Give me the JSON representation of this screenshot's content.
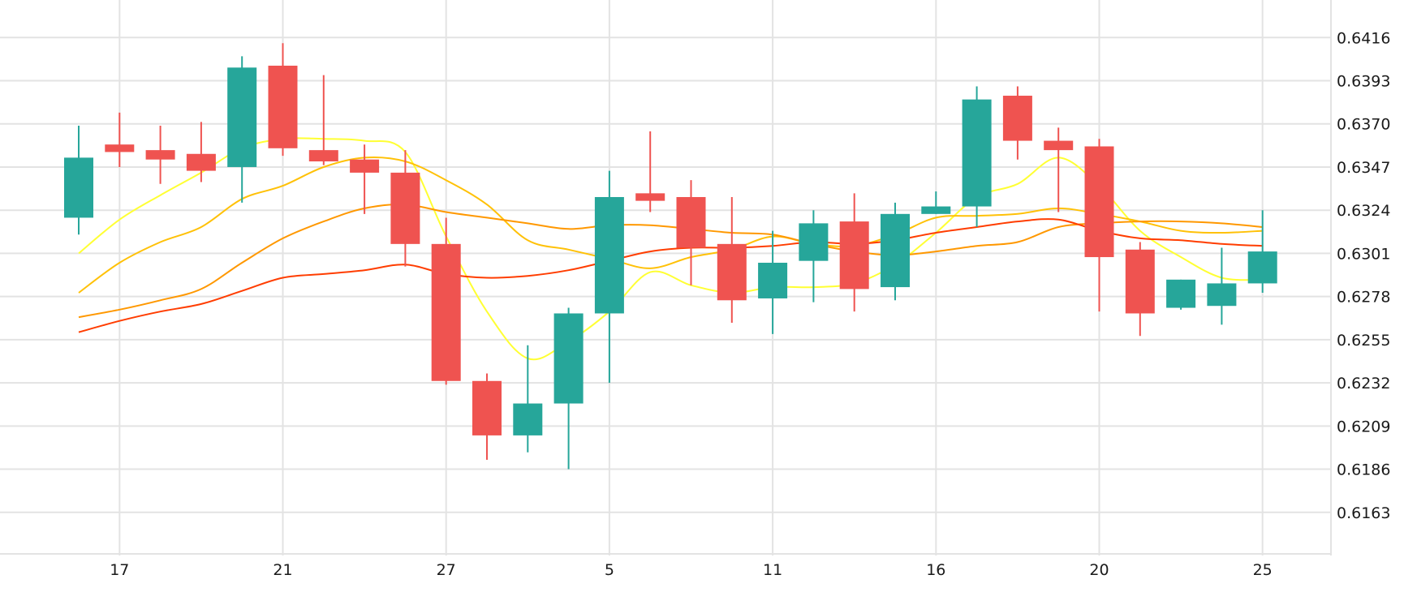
{
  "colors": {
    "up": "#26a69a",
    "down": "#ef5350",
    "grid": "#e3e3e3",
    "ma_lines": [
      "#ffff33",
      "#ffc107",
      "#ff9800",
      "#ff3d00"
    ]
  },
  "chart_data": {
    "type": "candlestick",
    "title": "",
    "xlabel": "",
    "ylabel": "",
    "ylim": [
      0.614,
      0.6436
    ],
    "y_ticks": [
      "0.6416",
      "0.6393",
      "0.6370",
      "0.6347",
      "0.6324",
      "0.6301",
      "0.6278",
      "0.6255",
      "0.6232",
      "0.6209",
      "0.6186",
      "0.6163"
    ],
    "x_ticks": [
      {
        "index": 1,
        "label": "17"
      },
      {
        "index": 5,
        "label": "21"
      },
      {
        "index": 9,
        "label": "27"
      },
      {
        "index": 13,
        "label": "5"
      },
      {
        "index": 17,
        "label": "11"
      },
      {
        "index": 21,
        "label": "16"
      },
      {
        "index": 25,
        "label": "20"
      },
      {
        "index": 29,
        "label": "25"
      }
    ],
    "grid": true,
    "legend": "none",
    "candles": [
      {
        "o": 0.632,
        "h": 0.6369,
        "l": 0.6311,
        "c": 0.6352
      },
      {
        "o": 0.6359,
        "h": 0.6376,
        "l": 0.6347,
        "c": 0.6355
      },
      {
        "o": 0.6356,
        "h": 0.6369,
        "l": 0.6338,
        "c": 0.6351
      },
      {
        "o": 0.6354,
        "h": 0.6371,
        "l": 0.6339,
        "c": 0.6345
      },
      {
        "o": 0.6347,
        "h": 0.6406,
        "l": 0.6328,
        "c": 0.64
      },
      {
        "o": 0.6401,
        "h": 0.6413,
        "l": 0.6353,
        "c": 0.6357
      },
      {
        "o": 0.6356,
        "h": 0.6396,
        "l": 0.6348,
        "c": 0.635
      },
      {
        "o": 0.6351,
        "h": 0.6359,
        "l": 0.6322,
        "c": 0.6344
      },
      {
        "o": 0.6344,
        "h": 0.6356,
        "l": 0.6294,
        "c": 0.6306
      },
      {
        "o": 0.6306,
        "h": 0.632,
        "l": 0.6231,
        "c": 0.6233
      },
      {
        "o": 0.6233,
        "h": 0.6237,
        "l": 0.6191,
        "c": 0.6204
      },
      {
        "o": 0.6204,
        "h": 0.6252,
        "l": 0.6195,
        "c": 0.6221
      },
      {
        "o": 0.6221,
        "h": 0.6272,
        "l": 0.6186,
        "c": 0.6269
      },
      {
        "o": 0.6269,
        "h": 0.6345,
        "l": 0.6232,
        "c": 0.6331
      },
      {
        "o": 0.6333,
        "h": 0.6366,
        "l": 0.6323,
        "c": 0.6329
      },
      {
        "o": 0.6331,
        "h": 0.634,
        "l": 0.6284,
        "c": 0.6304
      },
      {
        "o": 0.6306,
        "h": 0.6331,
        "l": 0.6264,
        "c": 0.6276
      },
      {
        "o": 0.6277,
        "h": 0.6313,
        "l": 0.6258,
        "c": 0.6296
      },
      {
        "o": 0.6297,
        "h": 0.6324,
        "l": 0.6275,
        "c": 0.6317
      },
      {
        "o": 0.6318,
        "h": 0.6333,
        "l": 0.627,
        "c": 0.6282
      },
      {
        "o": 0.6283,
        "h": 0.6328,
        "l": 0.6276,
        "c": 0.6322
      },
      {
        "o": 0.6322,
        "h": 0.6334,
        "l": 0.6322,
        "c": 0.6326
      },
      {
        "o": 0.6326,
        "h": 0.639,
        "l": 0.6315,
        "c": 0.6383
      },
      {
        "o": 0.6385,
        "h": 0.639,
        "l": 0.6351,
        "c": 0.6361
      },
      {
        "o": 0.6361,
        "h": 0.6368,
        "l": 0.6323,
        "c": 0.6356
      },
      {
        "o": 0.6358,
        "h": 0.6362,
        "l": 0.627,
        "c": 0.6299
      },
      {
        "o": 0.6303,
        "h": 0.6307,
        "l": 0.6257,
        "c": 0.6269
      },
      {
        "o": 0.6272,
        "h": 0.6287,
        "l": 0.6271,
        "c": 0.6287
      },
      {
        "o": 0.6273,
        "h": 0.6304,
        "l": 0.6263,
        "c": 0.6285
      },
      {
        "o": 0.6285,
        "h": 0.6324,
        "l": 0.628,
        "c": 0.6302
      }
    ],
    "series": [
      {
        "values": [
          0.6301,
          0.6319,
          0.6332,
          0.6344,
          0.6357,
          0.6362,
          0.6362,
          0.6361,
          0.6355,
          0.631,
          0.627,
          0.6245,
          0.6254,
          0.627,
          0.6291,
          0.6284,
          0.628,
          0.6283,
          0.6283,
          0.6285,
          0.6295,
          0.6312,
          0.6331,
          0.6338,
          0.6352,
          0.6337,
          0.6313,
          0.6299,
          0.6288,
          0.6287
        ]
      },
      {
        "values": [
          0.628,
          0.6296,
          0.6307,
          0.6315,
          0.633,
          0.6337,
          0.6347,
          0.6352,
          0.635,
          0.634,
          0.6327,
          0.6308,
          0.6303,
          0.6298,
          0.6293,
          0.6299,
          0.6303,
          0.631,
          0.6306,
          0.6305,
          0.6311,
          0.632,
          0.6321,
          0.6322,
          0.6325,
          0.6322,
          0.6318,
          0.6313,
          0.6312,
          0.6313
        ]
      },
      {
        "values": [
          0.6267,
          0.6271,
          0.6276,
          0.6282,
          0.6296,
          0.6309,
          0.6318,
          0.6325,
          0.6327,
          0.6323,
          0.632,
          0.6317,
          0.6314,
          0.6316,
          0.6316,
          0.6314,
          0.6312,
          0.6311,
          0.6306,
          0.6302,
          0.63,
          0.6302,
          0.6305,
          0.6307,
          0.6315,
          0.6317,
          0.6318,
          0.6318,
          0.6317,
          0.6315
        ]
      },
      {
        "values": [
          0.6259,
          0.6265,
          0.627,
          0.6274,
          0.6281,
          0.6288,
          0.629,
          0.6292,
          0.6295,
          0.629,
          0.6288,
          0.6289,
          0.6292,
          0.6297,
          0.6302,
          0.6304,
          0.6304,
          0.6305,
          0.6307,
          0.6306,
          0.6308,
          0.6312,
          0.6315,
          0.6318,
          0.6319,
          0.6313,
          0.6309,
          0.6308,
          0.6306,
          0.6305
        ]
      }
    ]
  }
}
